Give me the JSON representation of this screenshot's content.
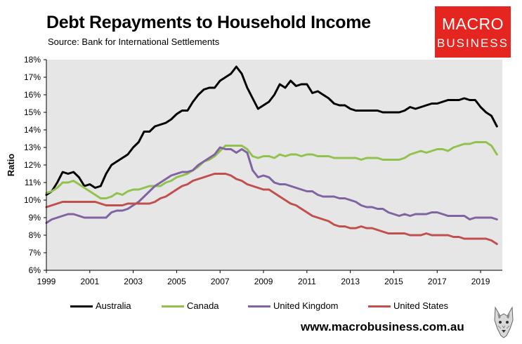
{
  "header": {
    "title": "Debt Repayments to Household Income",
    "subtitle": "Source: Bank for International Settlements"
  },
  "logo": {
    "line1": "MACRO",
    "line2": "BUSINESS",
    "color": "#e52620"
  },
  "footer": {
    "url": "www.macrobusiness.com.au",
    "icon": "wolf-icon"
  },
  "chart_data": {
    "type": "line",
    "title": "Debt Repayments to Household Income",
    "xlabel": "",
    "ylabel": "Ratio",
    "xlim": [
      1999,
      2020
    ],
    "ylim": [
      6,
      18
    ],
    "y_ticks": [
      "6%",
      "7%",
      "8%",
      "9%",
      "10%",
      "11%",
      "12%",
      "13%",
      "14%",
      "15%",
      "16%",
      "17%",
      "18%"
    ],
    "x_ticks": [
      "1999",
      "2001",
      "2003",
      "2005",
      "2007",
      "2009",
      "2011",
      "2013",
      "2015",
      "2017",
      "2019"
    ],
    "grid": false,
    "plot_background": "#e6e6e6",
    "legend_position": "bottom",
    "x": [
      1999,
      1999.25,
      1999.5,
      1999.75,
      2000,
      2000.25,
      2000.5,
      2000.75,
      2001,
      2001.25,
      2001.5,
      2001.75,
      2002,
      2002.25,
      2002.5,
      2002.75,
      2003,
      2003.25,
      2003.5,
      2003.75,
      2004,
      2004.25,
      2004.5,
      2004.75,
      2005,
      2005.25,
      2005.5,
      2005.75,
      2006,
      2006.25,
      2006.5,
      2006.75,
      2007,
      2007.25,
      2007.5,
      2007.75,
      2008,
      2008.25,
      2008.5,
      2008.75,
      2009,
      2009.25,
      2009.5,
      2009.75,
      2010,
      2010.25,
      2010.5,
      2010.75,
      2011,
      2011.25,
      2011.5,
      2011.75,
      2012,
      2012.25,
      2012.5,
      2012.75,
      2013,
      2013.25,
      2013.5,
      2013.75,
      2014,
      2014.25,
      2014.5,
      2014.75,
      2015,
      2015.25,
      2015.5,
      2015.75,
      2016,
      2016.25,
      2016.5,
      2016.75,
      2017,
      2017.25,
      2017.5,
      2017.75,
      2018,
      2018.25,
      2018.5,
      2018.75,
      2019,
      2019.25,
      2019.5,
      2019.75
    ],
    "series": [
      {
        "name": "Australia",
        "color": "#000000",
        "values": [
          10.3,
          10.5,
          11.0,
          11.6,
          11.5,
          11.6,
          11.3,
          10.8,
          10.9,
          10.7,
          10.8,
          11.5,
          12.0,
          12.2,
          12.4,
          12.6,
          13.0,
          13.3,
          13.9,
          13.9,
          14.2,
          14.3,
          14.4,
          14.6,
          14.9,
          15.1,
          15.1,
          15.6,
          16.0,
          16.3,
          16.4,
          16.4,
          16.8,
          17.0,
          17.2,
          17.6,
          17.2,
          16.4,
          15.8,
          15.2,
          15.4,
          15.6,
          16.0,
          16.6,
          16.4,
          16.8,
          16.5,
          16.6,
          16.6,
          16.1,
          16.2,
          16.0,
          15.8,
          15.5,
          15.4,
          15.4,
          15.2,
          15.1,
          15.1,
          15.1,
          15.1,
          15.1,
          15.0,
          15.0,
          15.0,
          15.0,
          15.1,
          15.3,
          15.2,
          15.3,
          15.4,
          15.5,
          15.5,
          15.6,
          15.7,
          15.7,
          15.7,
          15.8,
          15.7,
          15.7,
          15.3,
          15.0,
          14.8,
          14.2
        ]
      },
      {
        "name": "Canada",
        "color": "#92c24e",
        "values": [
          10.4,
          10.5,
          10.7,
          11.0,
          11.0,
          11.1,
          10.9,
          10.7,
          10.5,
          10.3,
          10.1,
          10.1,
          10.2,
          10.4,
          10.3,
          10.5,
          10.6,
          10.6,
          10.7,
          10.8,
          10.8,
          10.8,
          11.0,
          11.1,
          11.3,
          11.4,
          11.5,
          11.7,
          11.9,
          12.2,
          12.3,
          12.5,
          12.8,
          13.1,
          13.1,
          13.1,
          13.1,
          12.9,
          12.5,
          12.4,
          12.5,
          12.5,
          12.4,
          12.6,
          12.5,
          12.6,
          12.6,
          12.5,
          12.6,
          12.6,
          12.5,
          12.5,
          12.5,
          12.4,
          12.4,
          12.4,
          12.4,
          12.4,
          12.3,
          12.4,
          12.4,
          12.4,
          12.3,
          12.3,
          12.3,
          12.3,
          12.4,
          12.6,
          12.7,
          12.8,
          12.7,
          12.8,
          12.9,
          12.9,
          12.8,
          13.0,
          13.1,
          13.2,
          13.2,
          13.3,
          13.3,
          13.3,
          13.1,
          12.6
        ]
      },
      {
        "name": "United Kingdom",
        "color": "#8064a2",
        "values": [
          8.7,
          8.9,
          9.0,
          9.1,
          9.2,
          9.2,
          9.1,
          9.0,
          9.0,
          9.0,
          9.0,
          9.0,
          9.3,
          9.4,
          9.4,
          9.5,
          9.7,
          9.9,
          10.2,
          10.5,
          10.8,
          11.0,
          11.2,
          11.4,
          11.5,
          11.6,
          11.6,
          11.7,
          12.0,
          12.2,
          12.4,
          12.6,
          13.0,
          12.9,
          12.9,
          12.7,
          12.9,
          12.7,
          11.7,
          11.3,
          11.4,
          11.3,
          11.0,
          10.9,
          10.9,
          10.8,
          10.7,
          10.6,
          10.5,
          10.5,
          10.3,
          10.2,
          10.2,
          10.2,
          10.1,
          10.1,
          10.0,
          9.9,
          9.7,
          9.6,
          9.6,
          9.5,
          9.5,
          9.3,
          9.2,
          9.1,
          9.2,
          9.1,
          9.2,
          9.2,
          9.2,
          9.3,
          9.3,
          9.2,
          9.1,
          9.1,
          9.1,
          9.1,
          8.9,
          9.0,
          9.0,
          9.0,
          9.0,
          8.9
        ]
      },
      {
        "name": "United States",
        "color": "#c0504d",
        "values": [
          9.6,
          9.7,
          9.8,
          9.9,
          9.9,
          9.9,
          9.9,
          9.9,
          9.9,
          9.9,
          9.8,
          9.7,
          9.7,
          9.7,
          9.7,
          9.8,
          9.8,
          9.8,
          9.8,
          9.8,
          9.9,
          10.1,
          10.2,
          10.4,
          10.6,
          10.8,
          10.9,
          11.1,
          11.2,
          11.3,
          11.4,
          11.5,
          11.5,
          11.5,
          11.4,
          11.2,
          11.1,
          10.9,
          10.8,
          10.7,
          10.6,
          10.6,
          10.4,
          10.2,
          10.0,
          9.8,
          9.7,
          9.5,
          9.3,
          9.1,
          9.0,
          8.9,
          8.8,
          8.6,
          8.5,
          8.5,
          8.4,
          8.4,
          8.5,
          8.4,
          8.4,
          8.3,
          8.2,
          8.1,
          8.1,
          8.1,
          8.1,
          8.0,
          8.0,
          8.0,
          8.1,
          8.0,
          8.0,
          8.0,
          8.0,
          7.9,
          7.9,
          7.8,
          7.8,
          7.8,
          7.8,
          7.8,
          7.7,
          7.5
        ]
      }
    ]
  }
}
